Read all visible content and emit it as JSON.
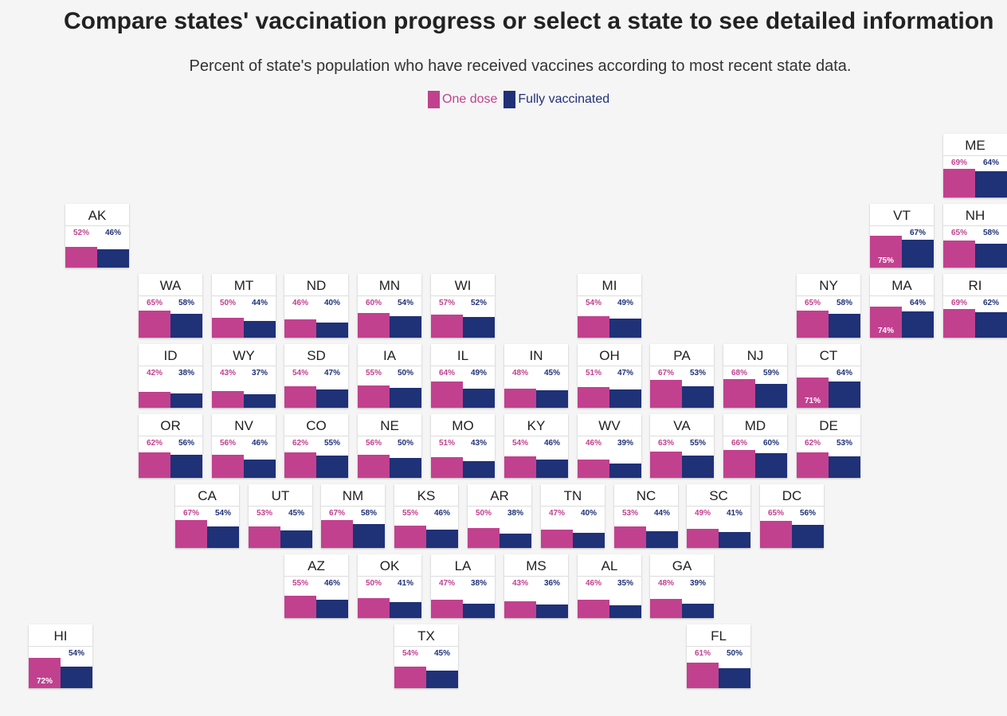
{
  "chart_data": {
    "type": "bar",
    "title": "Compare states' vaccination progress or select a state to see detailed information",
    "subtitle": "Percent of state's population who have received vaccines according to most recent state data.",
    "legend": [
      {
        "name": "One dose",
        "color": "#c1418f"
      },
      {
        "name": "Fully vaccinated",
        "color": "#1f3177"
      }
    ],
    "series_keys": [
      "one_dose",
      "fully_vaccinated"
    ],
    "states": [
      {
        "abbr": "ME",
        "col": 12,
        "row": 0,
        "one_dose": 69,
        "fully_vaccinated": 64
      },
      {
        "abbr": "AK",
        "col": 0,
        "row": 1,
        "one_dose": 52,
        "fully_vaccinated": 46
      },
      {
        "abbr": "VT",
        "col": 11,
        "row": 1,
        "one_dose": 75,
        "fully_vaccinated": 67
      },
      {
        "abbr": "NH",
        "col": 12,
        "row": 1,
        "one_dose": 65,
        "fully_vaccinated": 58
      },
      {
        "abbr": "WA",
        "col": 1,
        "row": 2,
        "one_dose": 65,
        "fully_vaccinated": 58
      },
      {
        "abbr": "MT",
        "col": 2,
        "row": 2,
        "one_dose": 50,
        "fully_vaccinated": 44
      },
      {
        "abbr": "ND",
        "col": 3,
        "row": 2,
        "one_dose": 46,
        "fully_vaccinated": 40
      },
      {
        "abbr": "MN",
        "col": 4,
        "row": 2,
        "one_dose": 60,
        "fully_vaccinated": 54
      },
      {
        "abbr": "WI",
        "col": 5,
        "row": 2,
        "one_dose": 57,
        "fully_vaccinated": 52
      },
      {
        "abbr": "MI",
        "col": 7,
        "row": 2,
        "one_dose": 54,
        "fully_vaccinated": 49
      },
      {
        "abbr": "NY",
        "col": 10,
        "row": 2,
        "one_dose": 65,
        "fully_vaccinated": 58
      },
      {
        "abbr": "MA",
        "col": 11,
        "row": 2,
        "one_dose": 74,
        "fully_vaccinated": 64
      },
      {
        "abbr": "RI",
        "col": 12,
        "row": 2,
        "one_dose": 69,
        "fully_vaccinated": 62
      },
      {
        "abbr": "ID",
        "col": 1,
        "row": 3,
        "one_dose": 42,
        "fully_vaccinated": 38
      },
      {
        "abbr": "WY",
        "col": 2,
        "row": 3,
        "one_dose": 43,
        "fully_vaccinated": 37
      },
      {
        "abbr": "SD",
        "col": 3,
        "row": 3,
        "one_dose": 54,
        "fully_vaccinated": 47
      },
      {
        "abbr": "IA",
        "col": 4,
        "row": 3,
        "one_dose": 55,
        "fully_vaccinated": 50
      },
      {
        "abbr": "IL",
        "col": 5,
        "row": 3,
        "one_dose": 64,
        "fully_vaccinated": 49
      },
      {
        "abbr": "IN",
        "col": 6,
        "row": 3,
        "one_dose": 48,
        "fully_vaccinated": 45
      },
      {
        "abbr": "OH",
        "col": 7,
        "row": 3,
        "one_dose": 51,
        "fully_vaccinated": 47
      },
      {
        "abbr": "PA",
        "col": 8,
        "row": 3,
        "one_dose": 67,
        "fully_vaccinated": 53
      },
      {
        "abbr": "NJ",
        "col": 9,
        "row": 3,
        "one_dose": 68,
        "fully_vaccinated": 59
      },
      {
        "abbr": "CT",
        "col": 10,
        "row": 3,
        "one_dose": 71,
        "fully_vaccinated": 64
      },
      {
        "abbr": "OR",
        "col": 1,
        "row": 4,
        "one_dose": 62,
        "fully_vaccinated": 56
      },
      {
        "abbr": "NV",
        "col": 2,
        "row": 4,
        "one_dose": 56,
        "fully_vaccinated": 46
      },
      {
        "abbr": "CO",
        "col": 3,
        "row": 4,
        "one_dose": 62,
        "fully_vaccinated": 55
      },
      {
        "abbr": "NE",
        "col": 4,
        "row": 4,
        "one_dose": 56,
        "fully_vaccinated": 50
      },
      {
        "abbr": "MO",
        "col": 5,
        "row": 4,
        "one_dose": 51,
        "fully_vaccinated": 43
      },
      {
        "abbr": "KY",
        "col": 6,
        "row": 4,
        "one_dose": 54,
        "fully_vaccinated": 46
      },
      {
        "abbr": "WV",
        "col": 7,
        "row": 4,
        "one_dose": 46,
        "fully_vaccinated": 39
      },
      {
        "abbr": "VA",
        "col": 8,
        "row": 4,
        "one_dose": 63,
        "fully_vaccinated": 55
      },
      {
        "abbr": "MD",
        "col": 9,
        "row": 4,
        "one_dose": 66,
        "fully_vaccinated": 60
      },
      {
        "abbr": "DE",
        "col": 10,
        "row": 4,
        "one_dose": 62,
        "fully_vaccinated": 53
      },
      {
        "abbr": "CA",
        "col": 1.5,
        "row": 5,
        "one_dose": 67,
        "fully_vaccinated": 54
      },
      {
        "abbr": "UT",
        "col": 2.5,
        "row": 5,
        "one_dose": 53,
        "fully_vaccinated": 45
      },
      {
        "abbr": "NM",
        "col": 3.5,
        "row": 5,
        "one_dose": 67,
        "fully_vaccinated": 58
      },
      {
        "abbr": "KS",
        "col": 4.5,
        "row": 5,
        "one_dose": 55,
        "fully_vaccinated": 46
      },
      {
        "abbr": "AR",
        "col": 5.5,
        "row": 5,
        "one_dose": 50,
        "fully_vaccinated": 38
      },
      {
        "abbr": "TN",
        "col": 6.5,
        "row": 5,
        "one_dose": 47,
        "fully_vaccinated": 40
      },
      {
        "abbr": "NC",
        "col": 7.5,
        "row": 5,
        "one_dose": 53,
        "fully_vaccinated": 44
      },
      {
        "abbr": "SC",
        "col": 8.5,
        "row": 5,
        "one_dose": 49,
        "fully_vaccinated": 41
      },
      {
        "abbr": "DC",
        "col": 9.5,
        "row": 5,
        "one_dose": 65,
        "fully_vaccinated": 56
      },
      {
        "abbr": "AZ",
        "col": 3,
        "row": 6,
        "one_dose": 55,
        "fully_vaccinated": 46
      },
      {
        "abbr": "OK",
        "col": 4,
        "row": 6,
        "one_dose": 50,
        "fully_vaccinated": 41
      },
      {
        "abbr": "LA",
        "col": 5,
        "row": 6,
        "one_dose": 47,
        "fully_vaccinated": 38
      },
      {
        "abbr": "MS",
        "col": 6,
        "row": 6,
        "one_dose": 43,
        "fully_vaccinated": 36
      },
      {
        "abbr": "AL",
        "col": 7,
        "row": 6,
        "one_dose": 46,
        "fully_vaccinated": 35
      },
      {
        "abbr": "GA",
        "col": 8,
        "row": 6,
        "one_dose": 48,
        "fully_vaccinated": 39
      },
      {
        "abbr": "HI",
        "col": -0.5,
        "row": 7,
        "one_dose": 72,
        "fully_vaccinated": 54
      },
      {
        "abbr": "TX",
        "col": 4.5,
        "row": 7,
        "one_dose": 54,
        "fully_vaccinated": 45
      },
      {
        "abbr": "FL",
        "col": 8.5,
        "row": 7,
        "one_dose": 61,
        "fully_vaccinated": 50
      }
    ]
  }
}
